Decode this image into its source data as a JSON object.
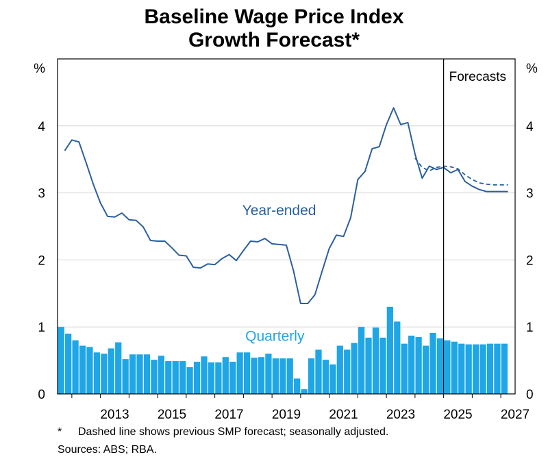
{
  "title_line1": "Baseline Wage Price Index",
  "title_line2": "Growth Forecast*",
  "footnote_marker": "*",
  "footnote": "Dashed line shows previous SMP forecast; seasonally adjusted.",
  "sources": "Sources: ABS; RBA.",
  "chart_data": {
    "type": "line",
    "title": "Baseline Wage Price Index Growth Forecast*",
    "y_unit_left": "%",
    "y_unit_right": "%",
    "ylim": [
      0,
      5
    ],
    "y_ticks": [
      0,
      1,
      2,
      3,
      4
    ],
    "x_tick_labels": [
      "2013",
      "2015",
      "2017",
      "2019",
      "2021",
      "2023",
      "2025",
      "2027"
    ],
    "xlim": [
      2011.5,
      2027.5
    ],
    "grid": true,
    "forecast_divider_x": 2025.0,
    "forecast_label": "Forecasts",
    "colors": {
      "year_ended": "#2a5f9e",
      "quarterly": "#1ea6e6",
      "grid": "#d4d4d4"
    },
    "series": [
      {
        "name": "Year-ended",
        "type": "line",
        "x": [
          2011.75,
          2012.0,
          2012.25,
          2012.5,
          2012.75,
          2013.0,
          2013.25,
          2013.5,
          2013.75,
          2014.0,
          2014.25,
          2014.5,
          2014.75,
          2015.0,
          2015.25,
          2015.5,
          2015.75,
          2016.0,
          2016.25,
          2016.5,
          2016.75,
          2017.0,
          2017.25,
          2017.5,
          2017.75,
          2018.0,
          2018.25,
          2018.5,
          2018.75,
          2019.0,
          2019.25,
          2019.5,
          2019.75,
          2020.0,
          2020.25,
          2020.5,
          2020.75,
          2021.0,
          2021.25,
          2021.5,
          2021.75,
          2022.0,
          2022.25,
          2022.5,
          2022.75,
          2023.0,
          2023.25,
          2023.5,
          2023.75,
          2024.0,
          2024.25,
          2024.5,
          2024.75,
          2025.0,
          2025.25,
          2025.5,
          2025.75,
          2026.0,
          2026.25,
          2026.5,
          2026.75,
          2027.0,
          2027.25
        ],
        "values": [
          3.63,
          3.79,
          3.76,
          3.45,
          3.13,
          2.85,
          2.65,
          2.64,
          2.7,
          2.6,
          2.59,
          2.49,
          2.29,
          2.28,
          2.28,
          2.18,
          2.07,
          2.06,
          1.89,
          1.88,
          1.94,
          1.93,
          2.02,
          2.08,
          1.99,
          2.14,
          2.28,
          2.27,
          2.32,
          2.24,
          2.23,
          2.22,
          1.84,
          1.35,
          1.35,
          1.48,
          1.83,
          2.17,
          2.37,
          2.35,
          2.63,
          3.2,
          3.32,
          3.66,
          3.69,
          4.02,
          4.27,
          4.02,
          4.05,
          3.58,
          3.22,
          3.4,
          3.35,
          3.38,
          3.3,
          3.35,
          3.17,
          3.1,
          3.05,
          3.02,
          3.02,
          3.02,
          3.02
        ]
      },
      {
        "name": "Previous SMP forecast",
        "type": "dashed-line",
        "x": [
          2024.0,
          2024.25,
          2024.5,
          2024.75,
          2025.0,
          2025.25,
          2025.5,
          2025.75,
          2026.0,
          2026.25,
          2026.5,
          2026.75,
          2027.0,
          2027.25
        ],
        "values": [
          3.52,
          3.38,
          3.33,
          3.38,
          3.4,
          3.39,
          3.36,
          3.27,
          3.2,
          3.15,
          3.13,
          3.12,
          3.12,
          3.12
        ]
      },
      {
        "name": "Quarterly",
        "type": "bar",
        "x": [
          2011.5,
          2011.75,
          2012.0,
          2012.25,
          2012.5,
          2012.75,
          2013.0,
          2013.25,
          2013.5,
          2013.75,
          2014.0,
          2014.25,
          2014.5,
          2014.75,
          2015.0,
          2015.25,
          2015.5,
          2015.75,
          2016.0,
          2016.25,
          2016.5,
          2016.75,
          2017.0,
          2017.25,
          2017.5,
          2017.75,
          2018.0,
          2018.25,
          2018.5,
          2018.75,
          2019.0,
          2019.25,
          2019.5,
          2019.75,
          2020.0,
          2020.25,
          2020.5,
          2020.75,
          2021.0,
          2021.25,
          2021.5,
          2021.75,
          2022.0,
          2022.25,
          2022.5,
          2022.75,
          2023.0,
          2023.25,
          2023.5,
          2023.75,
          2024.0,
          2024.25,
          2024.5,
          2024.75,
          2025.0,
          2025.25,
          2025.5,
          2025.75,
          2026.0,
          2026.25,
          2026.5,
          2026.75,
          2027.0
        ],
        "values": [
          1.0,
          0.9,
          0.8,
          0.72,
          0.7,
          0.62,
          0.6,
          0.68,
          0.77,
          0.52,
          0.59,
          0.59,
          0.59,
          0.51,
          0.57,
          0.49,
          0.49,
          0.49,
          0.4,
          0.48,
          0.56,
          0.47,
          0.47,
          0.55,
          0.48,
          0.62,
          0.62,
          0.54,
          0.55,
          0.6,
          0.53,
          0.53,
          0.53,
          0.23,
          0.07,
          0.53,
          0.66,
          0.51,
          0.44,
          0.72,
          0.66,
          0.76,
          1.0,
          0.84,
          0.99,
          0.84,
          1.3,
          1.08,
          0.75,
          0.87,
          0.85,
          0.72,
          0.91,
          0.83,
          0.8,
          0.78,
          0.75,
          0.74,
          0.74,
          0.74,
          0.75,
          0.75,
          0.75
        ]
      }
    ],
    "annotations": [
      {
        "text": "Year-ended",
        "x": 2019.25,
        "y": 2.67
      },
      {
        "text": "Quarterly",
        "x": 2019.1,
        "y": 0.79
      }
    ]
  }
}
